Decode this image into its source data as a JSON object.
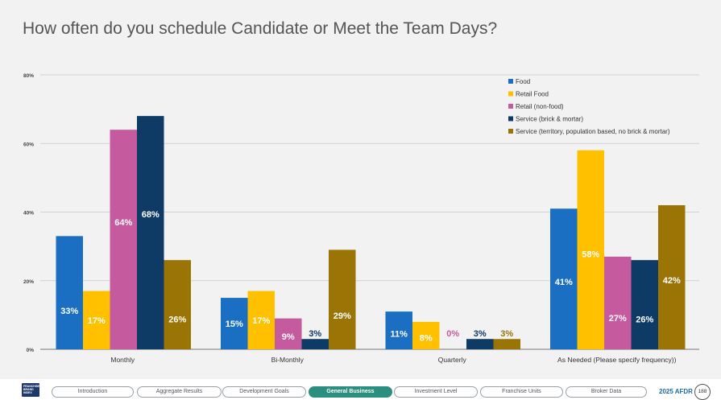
{
  "page": {
    "title": "How often do you schedule Candidate or Meet the Team Days?"
  },
  "footer": {
    "logo_text": "FRANCHISE BRAND INDEX",
    "tabs": [
      {
        "label": "Introduction",
        "active": false
      },
      {
        "label": "Aggregate Results",
        "active": false
      },
      {
        "label": "Development Goals",
        "active": false
      },
      {
        "label": "General Business",
        "active": true
      },
      {
        "label": "Investment Level",
        "active": false
      },
      {
        "label": "Franchise Units",
        "active": false
      },
      {
        "label": "Broker Data",
        "active": false
      }
    ],
    "report_label": "2025 AFDR",
    "page_number": "188"
  },
  "chart_data": {
    "type": "bar",
    "title": "How often do you schedule Candidate or Meet the Team Days?",
    "xlabel": "",
    "ylabel": "",
    "ylim": [
      0,
      80
    ],
    "yticks": [
      0,
      20,
      40,
      60,
      80
    ],
    "ytick_labels": [
      "0%",
      "20%",
      "40%",
      "60%",
      "80%"
    ],
    "grid": true,
    "legend_position": "top-right",
    "categories": [
      "Monthly",
      "Bi-Monthly",
      "Quarterly",
      "As Needed (Please specify frequency))"
    ],
    "series": [
      {
        "name": "Food",
        "color": "#1b6fc2",
        "label_color": "#ffffff",
        "values": [
          33,
          15,
          11,
          41
        ],
        "labels": [
          "33%",
          "15%",
          "11%",
          "41%"
        ]
      },
      {
        "name": "Retail Food",
        "color": "#ffc000",
        "label_color": "#ffffff",
        "values": [
          17,
          17,
          8,
          58
        ],
        "labels": [
          "17%",
          "17%",
          "8%",
          "58%"
        ]
      },
      {
        "name": "Retail (non-food)",
        "color": "#c55a9e",
        "label_color": "#ffffff",
        "values": [
          64,
          9,
          0,
          27
        ],
        "labels": [
          "64%",
          "9%",
          "0%",
          "27%"
        ]
      },
      {
        "name": "Service (brick & mortar)",
        "color": "#0e3a66",
        "label_color": "#ffffff",
        "values": [
          68,
          3,
          3,
          26
        ],
        "labels": [
          "68%",
          "3%",
          "3%",
          "26%"
        ]
      },
      {
        "name": "Service (territory, population based, no brick & mortar)",
        "color": "#9a7506",
        "label_color": "#ffffff",
        "values": [
          26,
          29,
          3,
          42
        ],
        "labels": [
          "26%",
          "29%",
          "3%",
          "42%"
        ]
      }
    ]
  }
}
